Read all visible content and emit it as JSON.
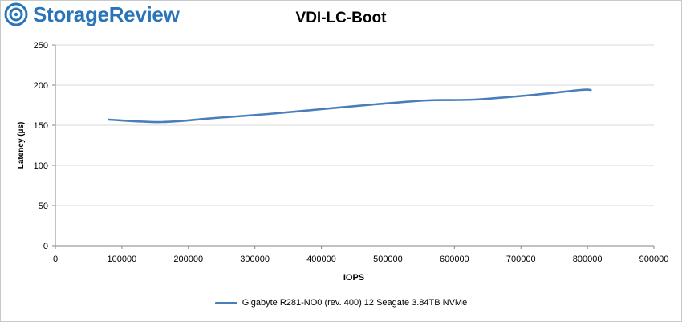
{
  "brand": {
    "logo_text": "StorageReview",
    "icon": "storagereview-logo-icon"
  },
  "chart_data": {
    "type": "line",
    "title": "VDI-LC-Boot",
    "xlabel": "IOPS",
    "ylabel": "Latency (µs)",
    "xlim": [
      0,
      900000
    ],
    "ylim": [
      0,
      250
    ],
    "x_ticks": [
      0,
      100000,
      200000,
      300000,
      400000,
      500000,
      600000,
      700000,
      800000,
      900000
    ],
    "y_ticks": [
      0,
      50,
      100,
      150,
      200,
      250
    ],
    "grid": "horizontal",
    "legend_position": "bottom",
    "series": [
      {
        "name": "Gigabyte R281-NO0 (rev. 400) 12 Seagate 3.84TB NVMe",
        "color": "#4a7ebb",
        "x": [
          80000,
          160000,
          240000,
          320000,
          400000,
          480000,
          560000,
          630000,
          720000,
          790000,
          805000
        ],
        "y": [
          157,
          154,
          159,
          164,
          170,
          176,
          181,
          182,
          188,
          194,
          194
        ]
      }
    ]
  }
}
